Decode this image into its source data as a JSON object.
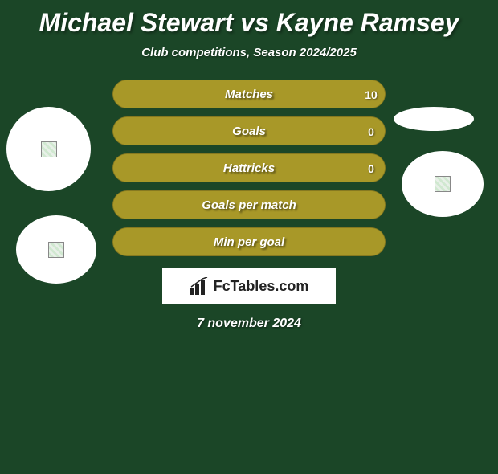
{
  "title": {
    "player1": "Michael Stewart",
    "vs": "vs",
    "player2": "Kayne Ramsey",
    "full": "Michael Stewart vs Kayne Ramsey",
    "color": "#ffffff",
    "fontsize": 32
  },
  "subtitle": {
    "text": "Club competitions, Season 2024/2025",
    "color": "#ffffff",
    "fontsize": 15
  },
  "stats": [
    {
      "label": "Matches",
      "left_value": "",
      "right_value": "10",
      "left_pct": 0,
      "right_pct": 100,
      "right_color": "#a89828"
    },
    {
      "label": "Goals",
      "left_value": "",
      "right_value": "0",
      "left_pct": 0,
      "right_pct": 100,
      "right_color": "#a89828"
    },
    {
      "label": "Hattricks",
      "left_value": "",
      "right_value": "0",
      "left_pct": 0,
      "right_pct": 100,
      "right_color": "#a89828"
    },
    {
      "label": "Goals per match",
      "left_value": "",
      "right_value": "",
      "left_pct": 0,
      "right_pct": 100,
      "right_color": "#a89828"
    },
    {
      "label": "Min per goal",
      "left_value": "",
      "right_value": "",
      "left_pct": 0,
      "right_pct": 100,
      "right_color": "#a89828"
    }
  ],
  "row_bg_color": "#a89828",
  "circles": {
    "count": 4,
    "color": "#ffffff"
  },
  "logo": {
    "text": "FcTables.com",
    "bg": "#ffffff"
  },
  "date": {
    "text": "7 november 2024",
    "color": "#ffffff",
    "fontsize": 16
  },
  "background_color": "#1b4627"
}
